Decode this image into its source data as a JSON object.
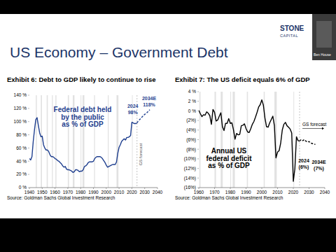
{
  "slide": {
    "title": "US Economy – Government Debt",
    "logo": [
      "STONE",
      "CAPITAL"
    ],
    "presenter": "Ben House"
  },
  "chart_data": [
    {
      "type": "line",
      "title": "Exhibit 6: Debt to GDP likely to continue to rise",
      "source": "Source: Goldman Sachs Global Investment Research",
      "x": [
        1940,
        1941,
        1942,
        1943,
        1944,
        1945,
        1946,
        1947,
        1948,
        1949,
        1950,
        1951,
        1952,
        1953,
        1954,
        1955,
        1956,
        1957,
        1958,
        1959,
        1960,
        1961,
        1962,
        1963,
        1964,
        1965,
        1966,
        1967,
        1968,
        1969,
        1970,
        1971,
        1972,
        1973,
        1974,
        1975,
        1976,
        1977,
        1978,
        1979,
        1980,
        1981,
        1982,
        1983,
        1984,
        1985,
        1986,
        1987,
        1988,
        1989,
        1990,
        1991,
        1992,
        1993,
        1994,
        1995,
        1996,
        1997,
        1998,
        1999,
        2000,
        2001,
        2002,
        2003,
        2004,
        2005,
        2006,
        2007,
        2008,
        2009,
        2010,
        2011,
        2012,
        2013,
        2014,
        2015,
        2016,
        2017,
        2018,
        2019,
        2020,
        2021,
        2022,
        2023,
        2024,
        2025,
        2026,
        2027,
        2028,
        2029,
        2030,
        2031,
        2032,
        2033,
        2034
      ],
      "series": [
        {
          "name": "Federal debt held by the public as % of GDP",
          "color": "#1f3f8f",
          "line_style": "solid",
          "values": [
            44,
            42,
            47,
            70,
            88,
            103,
            106,
            94,
            83,
            77,
            78,
            65,
            60,
            57,
            57,
            55,
            50,
            47,
            47,
            46,
            44,
            43,
            41,
            40,
            38,
            36,
            33,
            31,
            32,
            28,
            27,
            27,
            26,
            25,
            23,
            24,
            27,
            27,
            26,
            24,
            25,
            25,
            27,
            32,
            33,
            35,
            38,
            39,
            39,
            39,
            40,
            44,
            46,
            47,
            47,
            47,
            46,
            44,
            41,
            38,
            34,
            31,
            32,
            33,
            34,
            35,
            35,
            35,
            39,
            52,
            61,
            65,
            70,
            72,
            74,
            72,
            76,
            76,
            77,
            79,
            99,
            98,
            97,
            97,
            98,
            null,
            null,
            null,
            null,
            null,
            null,
            null,
            null,
            null,
            null
          ]
        },
        {
          "name": "GS forecast",
          "color": "#1f3f8f",
          "line_style": "dashed",
          "values": [
            null,
            null,
            null,
            null,
            null,
            null,
            null,
            null,
            null,
            null,
            null,
            null,
            null,
            null,
            null,
            null,
            null,
            null,
            null,
            null,
            null,
            null,
            null,
            null,
            null,
            null,
            null,
            null,
            null,
            null,
            null,
            null,
            null,
            null,
            null,
            null,
            null,
            null,
            null,
            null,
            null,
            null,
            null,
            null,
            null,
            null,
            null,
            null,
            null,
            null,
            null,
            null,
            null,
            null,
            null,
            null,
            null,
            null,
            null,
            null,
            null,
            null,
            null,
            null,
            null,
            null,
            null,
            null,
            null,
            null,
            null,
            null,
            null,
            null,
            null,
            null,
            null,
            null,
            null,
            null,
            null,
            null,
            null,
            null,
            98,
            101,
            103,
            105,
            107,
            109,
            111,
            112,
            114,
            116,
            118
          ]
        }
      ],
      "annotations": [
        "2024",
        "98%",
        "2034E",
        "118%"
      ],
      "recessions": [
        [
          1945,
          1945.8
        ],
        [
          1948.9,
          1949.8
        ],
        [
          1953.5,
          1954.4
        ],
        [
          1957.6,
          1958.3
        ],
        [
          1960.3,
          1961.1
        ],
        [
          1970,
          1970.9
        ],
        [
          1973.9,
          1975.2
        ],
        [
          1980,
          1980.5
        ],
        [
          1981.5,
          1982.9
        ],
        [
          1990.5,
          1991.2
        ],
        [
          2001.2,
          2001.9
        ],
        [
          2008,
          2009.5
        ],
        [
          2020.1,
          2020.4
        ]
      ],
      "xlim": [
        1940,
        2040
      ],
      "xticks": [
        1940,
        1950,
        1960,
        1970,
        1980,
        1990,
        2000,
        2010,
        2020,
        2030,
        2040
      ],
      "ylim": [
        0,
        140
      ],
      "yticks": [
        {
          "value": 0,
          "label": "0 %"
        },
        {
          "value": 20,
          "label": "20 %"
        },
        {
          "value": 40,
          "label": "40 %"
        },
        {
          "value": 60,
          "label": "60 %"
        },
        {
          "value": 80,
          "label": "80 %"
        },
        {
          "value": 100,
          "label": "100 %"
        },
        {
          "value": 120,
          "label": "120 %"
        },
        {
          "value": 140,
          "label": "140 %"
        }
      ],
      "grid": false
    },
    {
      "type": "line",
      "title": "Exhibit 7: The US deficit equals 6% of GDP",
      "source": "Source: Goldman Sachs Global Investment Research",
      "x": [
        1960,
        1961,
        1962,
        1963,
        1964,
        1965,
        1966,
        1967,
        1968,
        1969,
        1970,
        1971,
        1972,
        1973,
        1974,
        1975,
        1976,
        1977,
        1978,
        1979,
        1980,
        1981,
        1982,
        1983,
        1984,
        1985,
        1986,
        1987,
        1988,
        1989,
        1990,
        1991,
        1992,
        1993,
        1994,
        1995,
        1996,
        1997,
        1998,
        1999,
        2000,
        2001,
        2002,
        2003,
        2004,
        2005,
        2006,
        2007,
        2008,
        2009,
        2010,
        2011,
        2012,
        2013,
        2014,
        2015,
        2016,
        2017,
        2018,
        2019,
        2020,
        2021,
        2022,
        2023,
        2024,
        2025,
        2026,
        2027,
        2028,
        2029,
        2030,
        2031,
        2032,
        2033,
        2034
      ],
      "series": [
        {
          "name": "Annual US federal deficit as % of GDP",
          "color": "#000000",
          "line_style": "solid",
          "values": [
            0.1,
            -0.6,
            -1.2,
            -0.8,
            -0.9,
            -0.2,
            -0.5,
            -1.0,
            -2.8,
            0.3,
            -0.3,
            -2.1,
            -1.9,
            -1.1,
            -0.4,
            -3.3,
            -4.1,
            -2.6,
            -2.6,
            -1.6,
            -2.6,
            -2.5,
            -3.9,
            -5.9,
            -4.7,
            -5.0,
            -4.9,
            -3.1,
            -3.0,
            -2.7,
            -3.7,
            -4.4,
            -4.5,
            -3.7,
            -2.8,
            -2.2,
            -1.3,
            -0.3,
            0.8,
            1.3,
            2.3,
            1.2,
            -1.5,
            -3.3,
            -3.4,
            -2.5,
            -1.8,
            -1.1,
            -3.1,
            -9.8,
            -8.6,
            -8.3,
            -6.7,
            -4.0,
            -2.8,
            -2.4,
            -3.1,
            -3.4,
            -3.8,
            -4.6,
            -14.7,
            -12.1,
            -5.4,
            -6.2,
            -6.3,
            null,
            null,
            null,
            null,
            null,
            null,
            null,
            null,
            null,
            null
          ]
        },
        {
          "name": "GS forecast",
          "color": "#000000",
          "line_style": "dashed",
          "values": [
            null,
            null,
            null,
            null,
            null,
            null,
            null,
            null,
            null,
            null,
            null,
            null,
            null,
            null,
            null,
            null,
            null,
            null,
            null,
            null,
            null,
            null,
            null,
            null,
            null,
            null,
            null,
            null,
            null,
            null,
            null,
            null,
            null,
            null,
            null,
            null,
            null,
            null,
            null,
            null,
            null,
            null,
            null,
            null,
            null,
            null,
            null,
            null,
            null,
            null,
            null,
            null,
            null,
            null,
            null,
            null,
            null,
            null,
            null,
            null,
            null,
            null,
            null,
            null,
            -6.3,
            -6.0,
            -6.2,
            -6.0,
            -6.3,
            -6.5,
            -6.4,
            -6.7,
            -6.8,
            -6.9,
            -7.0
          ]
        }
      ],
      "annotations": [
        "2024",
        "(6%)",
        "2034E",
        "(7%)"
      ],
      "recessions": [
        [
          1960.3,
          1961.1
        ],
        [
          1970,
          1970.9
        ],
        [
          1973.9,
          1975.2
        ],
        [
          1980,
          1980.5
        ],
        [
          1981.5,
          1982.9
        ],
        [
          1990.5,
          1991.2
        ],
        [
          2001.2,
          2001.9
        ],
        [
          2008,
          2009.5
        ],
        [
          2020.1,
          2020.4
        ]
      ],
      "xlim": [
        1960,
        2040
      ],
      "xticks": [
        1960,
        1970,
        1980,
        1990,
        2000,
        2010,
        2020,
        2030,
        2040
      ],
      "ylim": [
        -16,
        4
      ],
      "yticks": [
        {
          "value": 4,
          "label": "4 %"
        },
        {
          "value": 2,
          "label": "2 %"
        },
        {
          "value": 0,
          "label": "0 %"
        },
        {
          "value": -2,
          "label": "(2%)"
        },
        {
          "value": -4,
          "label": "(4%)"
        },
        {
          "value": -6,
          "label": "(6%)"
        },
        {
          "value": -8,
          "label": "(8%)"
        },
        {
          "value": -10,
          "label": "(10%)"
        },
        {
          "value": -12,
          "label": "(12%)"
        },
        {
          "value": -14,
          "label": "(14%)"
        },
        {
          "value": -16,
          "label": "(16%)"
        }
      ],
      "grid": false
    }
  ]
}
